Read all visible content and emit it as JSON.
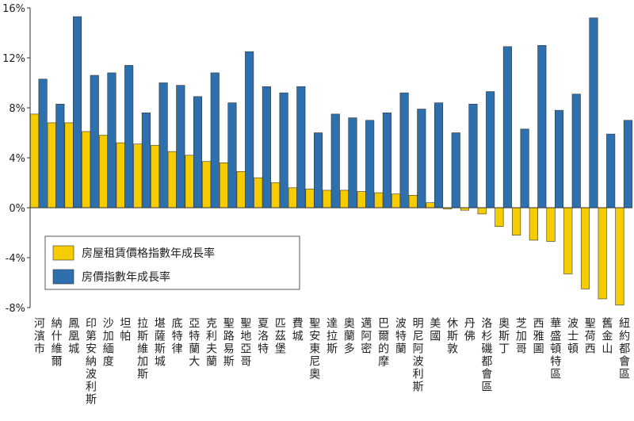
{
  "chart_data": {
    "type": "bar",
    "categories": [
      "河濱市",
      "納什維爾",
      "鳳凰城",
      "印第安納波利斯",
      "沙加緬度",
      "坦帕",
      "拉斯維加斯",
      "堪薩斯城",
      "底特律",
      "亞特蘭大",
      "克利夫蘭",
      "聖路易斯",
      "聖地亞哥",
      "夏洛特",
      "匹茲堡",
      "費城",
      "聖安東尼奧",
      "達拉斯",
      "奧蘭多",
      "邁阿密",
      "巴爾的摩",
      "波特蘭",
      "明尼阿波利斯",
      "美國",
      "休斯敦",
      "丹佛",
      "洛杉磯都會區",
      "奧斯丁",
      "芝加哥",
      "西雅圖",
      "華盛頓特區",
      "波士頓",
      "聖荷西",
      "舊金山",
      "紐約都會區"
    ],
    "series": [
      {
        "name": "房屋租賃價格指數年成長率",
        "color": "#f5cc00",
        "values": [
          7.5,
          6.8,
          6.8,
          6.1,
          5.8,
          5.2,
          5.1,
          5.0,
          4.5,
          4.2,
          3.7,
          3.6,
          2.9,
          2.4,
          2.0,
          1.6,
          1.5,
          1.4,
          1.4,
          1.3,
          1.2,
          1.1,
          1.0,
          0.4,
          -0.1,
          -0.2,
          -0.5,
          -1.5,
          -2.2,
          -2.6,
          -2.7,
          -5.3,
          -6.5,
          -7.3,
          -7.8
        ]
      },
      {
        "name": "房價指數年成長率",
        "color": "#2e6fad",
        "values": [
          10.3,
          8.3,
          15.3,
          10.6,
          10.8,
          11.4,
          7.6,
          10.0,
          9.8,
          8.9,
          10.8,
          8.4,
          12.5,
          9.7,
          9.2,
          9.7,
          6.0,
          7.5,
          7.2,
          7.0,
          7.6,
          9.2,
          7.9,
          8.4,
          6.0,
          8.3,
          9.3,
          12.9,
          6.3,
          13.0,
          7.8,
          9.1,
          15.2,
          5.9,
          7.0
        ]
      }
    ],
    "ylim": [
      -8,
      16
    ],
    "yticks": [
      {
        "value": -8,
        "label": "-8%"
      },
      {
        "value": -4,
        "label": "-4%"
      },
      {
        "value": 0,
        "label": "0%"
      },
      {
        "value": 4,
        "label": "4%"
      },
      {
        "value": 8,
        "label": "8%"
      },
      {
        "value": 12,
        "label": "12%"
      },
      {
        "value": 16,
        "label": "16%"
      }
    ],
    "grid": false,
    "legend": "lower left"
  }
}
